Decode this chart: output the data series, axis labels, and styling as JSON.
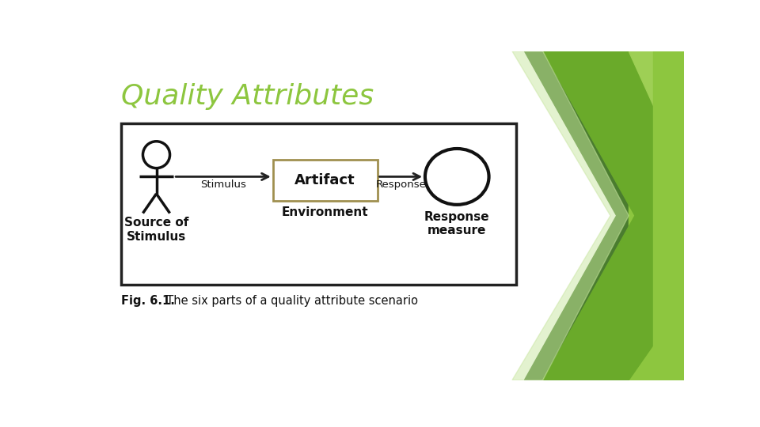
{
  "title": "Quality Attributes",
  "title_color": "#8dc63f",
  "title_fontsize": 26,
  "title_style": "italic",
  "bg_color": "#ffffff",
  "diagram_border_color": "#222222",
  "artifact_box_color": "#a09050",
  "artifact_label": "Artifact",
  "environment_label": "Environment",
  "stimulus_label": "Stimulus",
  "response_label": "Response",
  "source_label": "Source of\nStimulus",
  "response_measure_label": "Response\nmeasure",
  "stickman_color": "#111111",
  "arrow_color": "#222222",
  "circle_color": "#111111",
  "text_color": "#111111",
  "green_dark": "#4a7c2f",
  "green_mid": "#6aaa2a",
  "green_light": "#8dc63f",
  "green_pale": "#c8e6a0",
  "green_lighter": "#9ecf55"
}
